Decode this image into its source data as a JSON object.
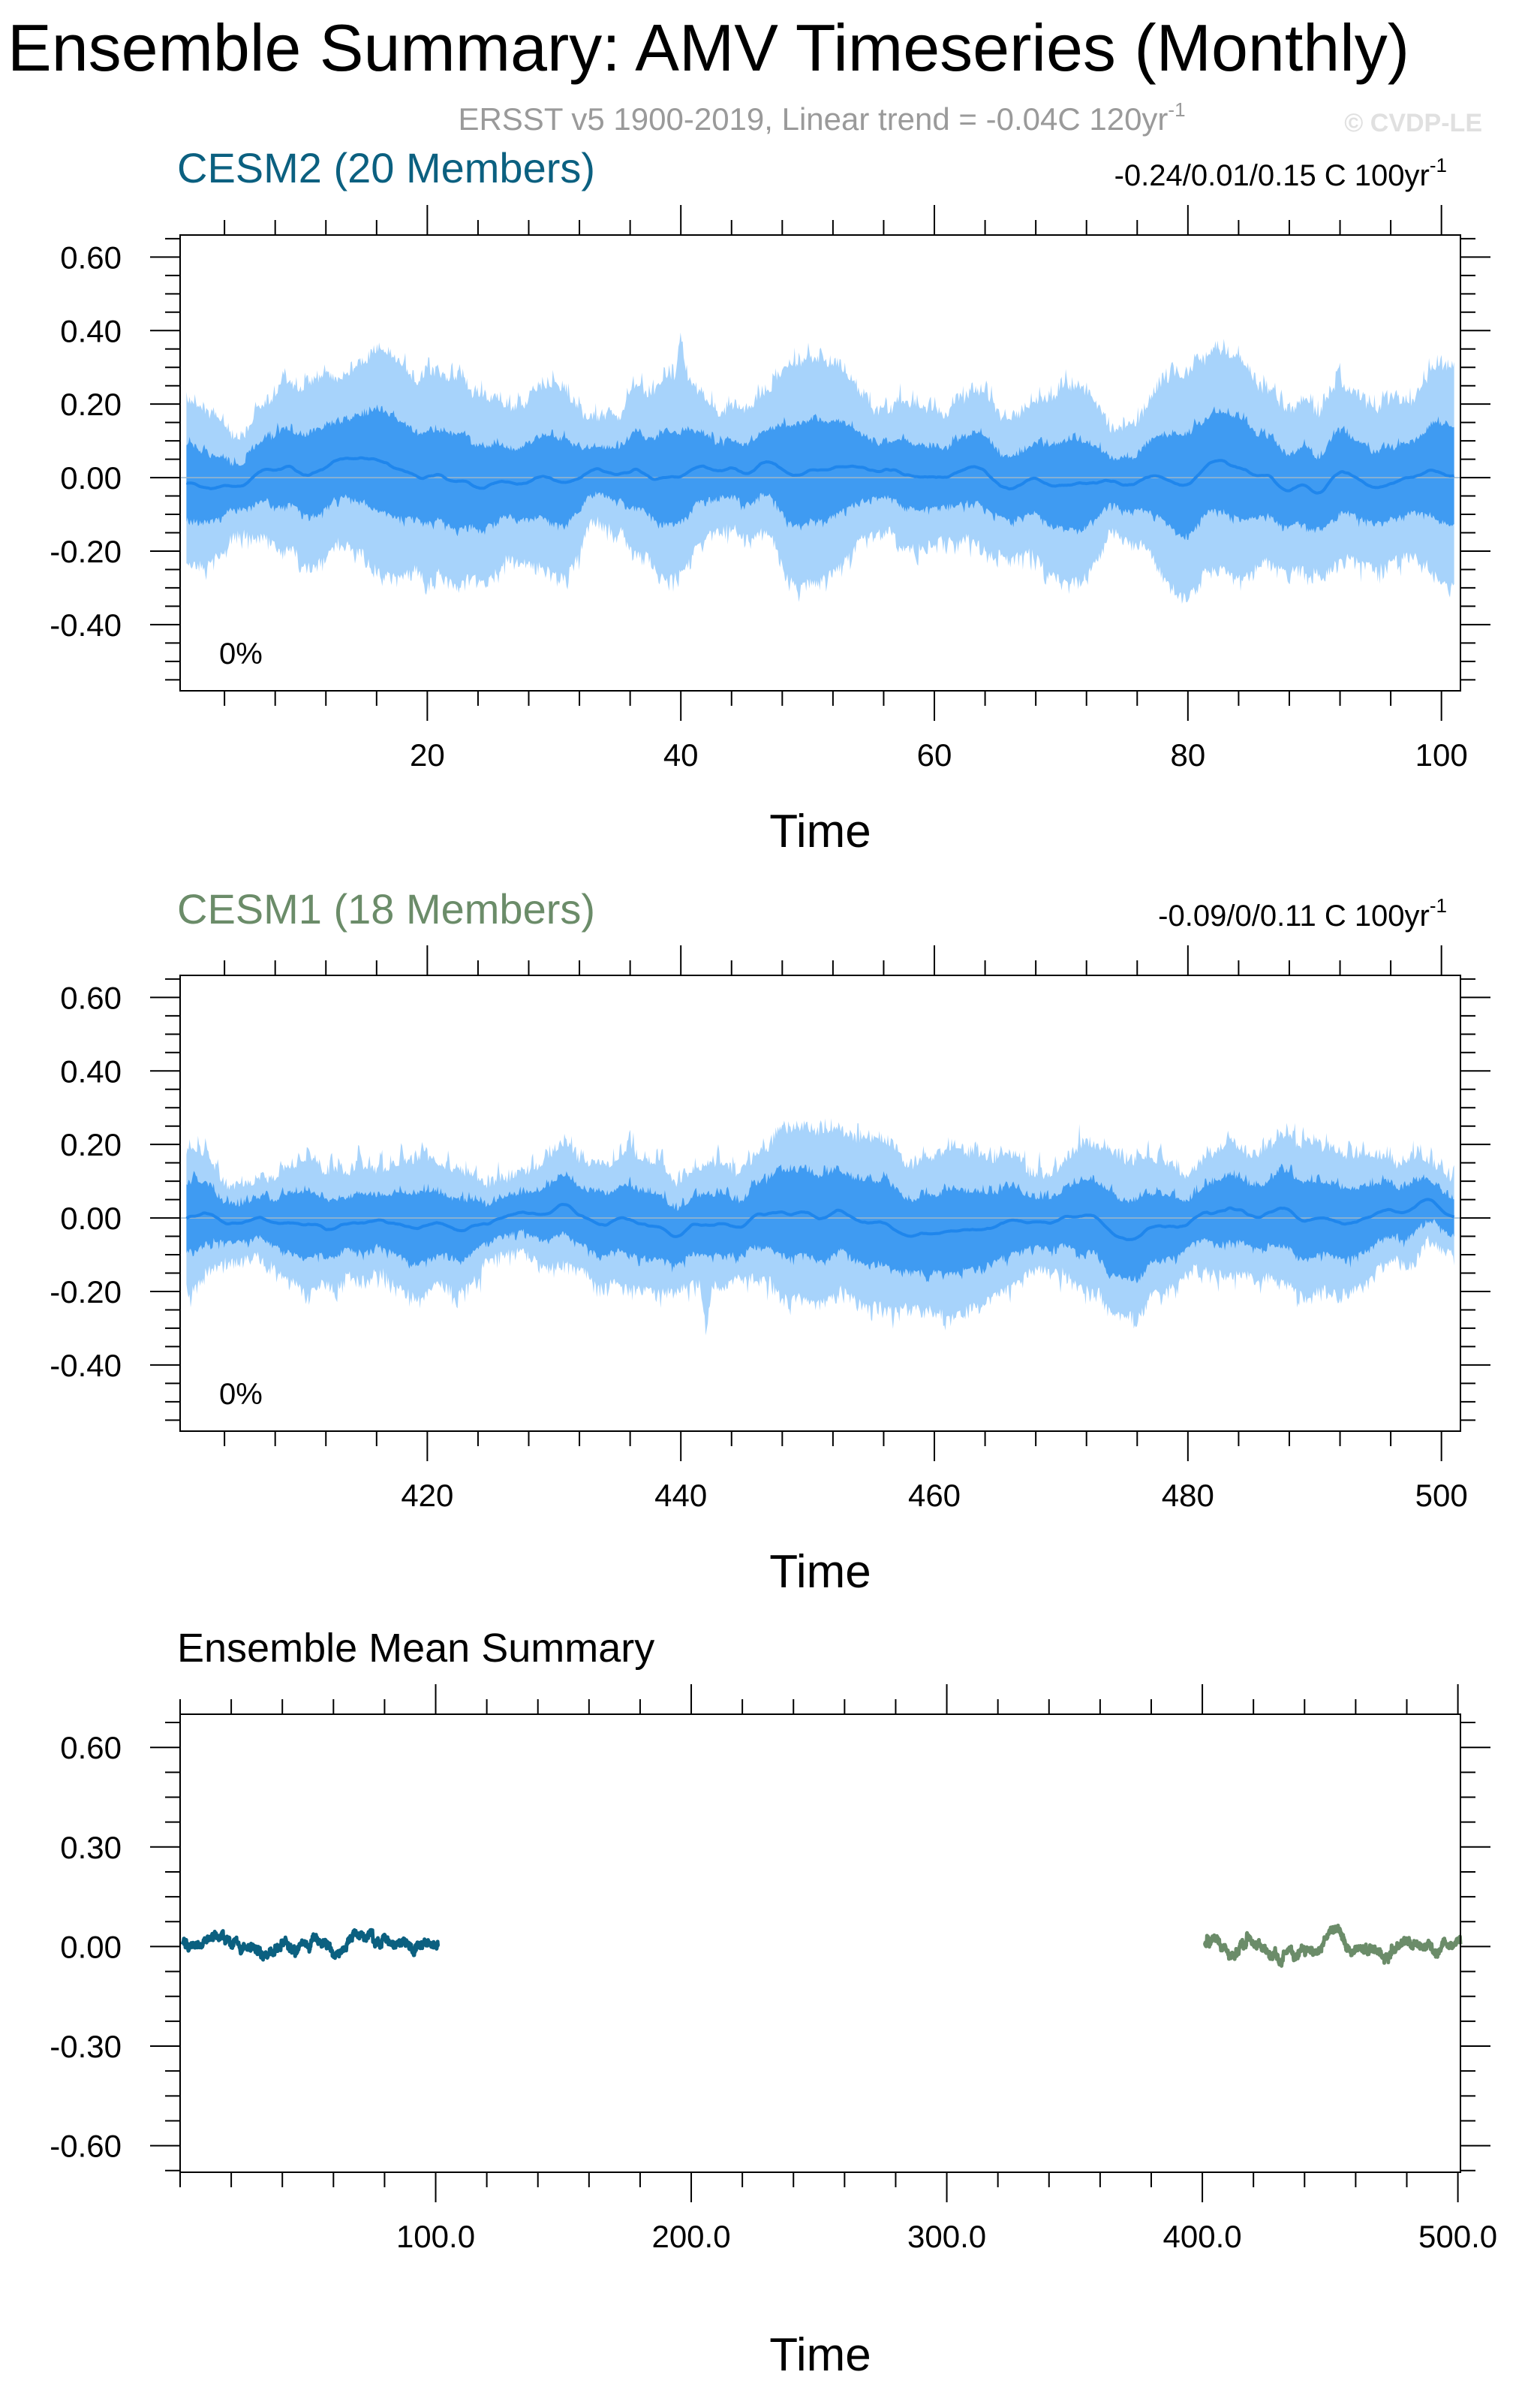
{
  "page": {
    "title": "Ensemble Summary: AMV Timeseries (Monthly)",
    "subtitle": "ERSST v5 1900-2019, Linear trend = -0.04C 120yr",
    "subtitle_sup": "-1",
    "watermark": "© CVDP-LE"
  },
  "colors": {
    "envelope_outer": "#a7d3fb",
    "envelope_inner": "#3f9bf2",
    "mean_line": "#1f86ec",
    "cesm2": "#0b6080",
    "cesm1": "#6b8c69"
  },
  "chart_data": [
    {
      "type": "area",
      "title": "CESM2 (20 Members)",
      "trend_label": "-0.24/0.01/0.15 C 100yr",
      "trend_sup": "-1",
      "percent_label": "0%",
      "xlabel": "Time",
      "ylabel": "",
      "xlim": [
        0.5,
        101.5
      ],
      "ylim": [
        -0.58,
        0.66
      ],
      "x_ticks": [
        20,
        40,
        60,
        80,
        100
      ],
      "x_tick_labels": [
        "20",
        "40",
        "60",
        "80",
        "100"
      ],
      "y_ticks": [
        -0.4,
        -0.2,
        0,
        0.2,
        0.4,
        0.6
      ],
      "y_tick_labels": [
        "-0.40",
        "-0.20",
        "0.00",
        "0.20",
        "0.40",
        "0.60"
      ],
      "x_range": [
        1,
        101
      ],
      "series": [
        {
          "name": "",
          "role": "outer_envelope",
          "approx_min": -0.43,
          "approx_max": 0.4
        },
        {
          "name": "",
          "role": "inner_envelope",
          "approx_min": -0.27,
          "approx_max": 0.27
        },
        {
          "name": "",
          "role": "ensemble_mean",
          "approx_min": -0.1,
          "approx_max": 0.1
        }
      ]
    },
    {
      "type": "area",
      "title": "CESM1 (18 Members)",
      "trend_label": "-0.09/0/0.11 C 100yr",
      "trend_sup": "-1",
      "percent_label": "0%",
      "xlabel": "Time",
      "ylabel": "",
      "xlim": [
        400.5,
        501.5
      ],
      "ylim": [
        -0.58,
        0.66
      ],
      "x_ticks": [
        420,
        440,
        460,
        480,
        500
      ],
      "x_tick_labels": [
        "420",
        "440",
        "460",
        "480",
        "500"
      ],
      "y_ticks": [
        -0.4,
        -0.2,
        0,
        0.2,
        0.4,
        0.6
      ],
      "y_tick_labels": [
        "-0.40",
        "-0.20",
        "0.00",
        "0.20",
        "0.40",
        "0.60"
      ],
      "x_range": [
        401,
        501
      ],
      "series": [
        {
          "name": "",
          "role": "outer_envelope",
          "approx_min": -0.39,
          "approx_max": 0.3
        },
        {
          "name": "",
          "role": "inner_envelope",
          "approx_min": -0.25,
          "approx_max": 0.2
        },
        {
          "name": "",
          "role": "ensemble_mean",
          "approx_min": -0.08,
          "approx_max": 0.08
        }
      ]
    },
    {
      "type": "line",
      "title": "Ensemble Mean Summary",
      "xlabel": "Time",
      "ylabel": "",
      "xlim": [
        0,
        501
      ],
      "ylim": [
        -0.68,
        0.7
      ],
      "x_ticks": [
        100,
        200,
        300,
        400,
        500
      ],
      "x_tick_labels": [
        "100.0",
        "200.0",
        "300.0",
        "400.0",
        "500.0"
      ],
      "y_ticks": [
        -0.6,
        -0.3,
        0,
        0.3,
        0.6
      ],
      "y_tick_labels": [
        "-0.60",
        "-0.30",
        "0.00",
        "0.30",
        "0.60"
      ],
      "series": [
        {
          "name": "",
          "color": "#0b6080",
          "x_range": [
            1,
            101
          ],
          "approx_min": -0.1,
          "approx_max": 0.13
        },
        {
          "name": "",
          "color": "#6b8c69",
          "x_range": [
            401,
            501
          ],
          "approx_min": -0.1,
          "approx_max": 0.1
        }
      ]
    }
  ]
}
